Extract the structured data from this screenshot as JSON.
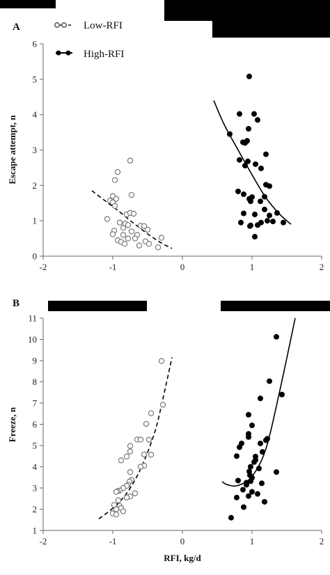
{
  "colors": {
    "low": "#777777",
    "high": "#000000",
    "axis": "#555555",
    "bar": "#000000"
  },
  "legend": {
    "items": [
      {
        "label": "Low-RFI"
      },
      {
        "label": "High-RFI"
      }
    ]
  },
  "chart_data": [
    {
      "panel": "A",
      "type": "scatter",
      "ylabel": "Escape attempt, n",
      "xlabel": "",
      "xlim": [
        -2,
        2
      ],
      "ylim": [
        0,
        6
      ],
      "xticks": [
        "-2",
        "-1",
        "0",
        "1",
        "2"
      ],
      "yticks": [
        "0",
        "1",
        "2",
        "3",
        "4",
        "5",
        "6"
      ],
      "series": [
        {
          "name": "Low-RFI",
          "marker": "open-circle",
          "line": "dashed",
          "points": [
            [
              -0.75,
              2.7
            ],
            [
              -0.93,
              2.38
            ],
            [
              -0.97,
              2.15
            ],
            [
              -0.73,
              1.73
            ],
            [
              -1.0,
              1.7
            ],
            [
              -0.95,
              1.62
            ],
            [
              -1.04,
              1.57
            ],
            [
              -1.0,
              1.52
            ],
            [
              -0.97,
              1.42
            ],
            [
              -0.8,
              1.18
            ],
            [
              -0.75,
              1.22
            ],
            [
              -0.7,
              1.2
            ],
            [
              -1.08,
              1.05
            ],
            [
              -0.9,
              0.95
            ],
            [
              -0.82,
              0.92
            ],
            [
              -0.85,
              0.8
            ],
            [
              -0.78,
              0.88
            ],
            [
              -0.6,
              0.86
            ],
            [
              -0.55,
              0.85
            ],
            [
              -0.5,
              0.75
            ],
            [
              -0.98,
              0.72
            ],
            [
              -0.73,
              0.7
            ],
            [
              -1.0,
              0.62
            ],
            [
              -0.85,
              0.6
            ],
            [
              -0.65,
              0.6
            ],
            [
              -0.3,
              0.52
            ],
            [
              -0.78,
              0.5
            ],
            [
              -0.68,
              0.5
            ],
            [
              -0.93,
              0.45
            ],
            [
              -0.88,
              0.4
            ],
            [
              -0.53,
              0.42
            ],
            [
              -0.48,
              0.35
            ],
            [
              -0.83,
              0.35
            ],
            [
              -0.62,
              0.3
            ],
            [
              -0.35,
              0.25
            ]
          ],
          "fit": [
            [
              -1.3,
              1.85
            ],
            [
              -1.1,
              1.55
            ],
            [
              -0.9,
              1.25
            ],
            [
              -0.7,
              0.93
            ],
            [
              -0.5,
              0.63
            ],
            [
              -0.3,
              0.37
            ],
            [
              -0.15,
              0.22
            ]
          ]
        },
        {
          "name": "High-RFI",
          "marker": "filled-circle",
          "line": "solid",
          "points": [
            [
              0.96,
              5.08
            ],
            [
              1.03,
              4.02
            ],
            [
              0.82,
              4.02
            ],
            [
              1.08,
              3.85
            ],
            [
              0.95,
              3.6
            ],
            [
              0.68,
              3.45
            ],
            [
              0.87,
              3.22
            ],
            [
              0.93,
              3.26
            ],
            [
              0.9,
              3.2
            ],
            [
              1.2,
              2.88
            ],
            [
              0.82,
              2.72
            ],
            [
              0.94,
              2.68
            ],
            [
              1.05,
              2.6
            ],
            [
              0.9,
              2.56
            ],
            [
              1.13,
              2.48
            ],
            [
              1.2,
              2.02
            ],
            [
              1.25,
              1.98
            ],
            [
              0.8,
              1.83
            ],
            [
              0.88,
              1.75
            ],
            [
              1.0,
              1.67
            ],
            [
              0.96,
              1.62
            ],
            [
              1.12,
              1.55
            ],
            [
              0.98,
              1.55
            ],
            [
              1.18,
              1.68
            ],
            [
              1.18,
              1.32
            ],
            [
              1.36,
              1.22
            ],
            [
              0.88,
              1.21
            ],
            [
              1.04,
              1.18
            ],
            [
              1.25,
              1.15
            ],
            [
              1.22,
              1.0
            ],
            [
              1.3,
              0.98
            ],
            [
              1.13,
              0.95
            ],
            [
              1.08,
              0.88
            ],
            [
              0.98,
              0.87
            ],
            [
              1.45,
              0.95
            ],
            [
              0.84,
              0.95
            ],
            [
              0.97,
              0.85
            ],
            [
              1.04,
              0.55
            ]
          ],
          "fit": [
            [
              0.45,
              4.4
            ],
            [
              0.6,
              3.72
            ],
            [
              0.8,
              3.0
            ],
            [
              1.0,
              2.3
            ],
            [
              1.2,
              1.65
            ],
            [
              1.4,
              1.18
            ],
            [
              1.56,
              0.9
            ]
          ]
        }
      ]
    },
    {
      "panel": "B",
      "type": "scatter",
      "ylabel": "Freeze, n",
      "xlabel": "RFI, kg/d",
      "xlim": [
        -2,
        2
      ],
      "ylim": [
        1,
        11
      ],
      "xticks": [
        "-2",
        "-1",
        "0",
        "1",
        "2"
      ],
      "yticks": [
        "1",
        "2",
        "3",
        "4",
        "5",
        "6",
        "7",
        "8",
        "9",
        "10",
        "11"
      ],
      "series": [
        {
          "name": "Low-RFI",
          "marker": "open-circle",
          "line": "dashed",
          "points": [
            [
              -0.3,
              8.98
            ],
            [
              -0.28,
              6.92
            ],
            [
              -0.45,
              6.52
            ],
            [
              -0.52,
              6.02
            ],
            [
              -0.65,
              5.28
            ],
            [
              -0.6,
              5.28
            ],
            [
              -0.48,
              5.27
            ],
            [
              -0.75,
              4.98
            ],
            [
              -0.75,
              4.72
            ],
            [
              -0.55,
              4.58
            ],
            [
              -0.45,
              4.57
            ],
            [
              -0.8,
              4.48
            ],
            [
              -0.88,
              4.3
            ],
            [
              -0.55,
              4.05
            ],
            [
              -0.6,
              4.0
            ],
            [
              -0.75,
              3.75
            ],
            [
              -0.73,
              3.38
            ],
            [
              -0.76,
              3.3
            ],
            [
              -0.78,
              3.15
            ],
            [
              -0.8,
              3.1
            ],
            [
              -0.85,
              3.0
            ],
            [
              -0.9,
              2.88
            ],
            [
              -0.93,
              2.85
            ],
            [
              -0.95,
              2.82
            ],
            [
              -0.68,
              2.75
            ],
            [
              -0.75,
              2.6
            ],
            [
              -0.8,
              2.55
            ],
            [
              -0.92,
              2.42
            ],
            [
              -0.98,
              2.2
            ],
            [
              -0.9,
              2.15
            ],
            [
              -0.88,
              2.05
            ],
            [
              -0.95,
              2.0
            ],
            [
              -0.85,
              1.9
            ],
            [
              -1.0,
              1.8
            ],
            [
              -0.95,
              1.75
            ]
          ],
          "fit": [
            [
              -1.2,
              1.55
            ],
            [
              -1.0,
              2.05
            ],
            [
              -0.8,
              2.75
            ],
            [
              -0.6,
              3.9
            ],
            [
              -0.4,
              5.6
            ],
            [
              -0.28,
              7.2
            ],
            [
              -0.15,
              9.15
            ]
          ]
        },
        {
          "name": "High-RFI",
          "marker": "filled-circle",
          "line": "solid",
          "points": [
            [
              1.35,
              10.12
            ],
            [
              1.25,
              8.03
            ],
            [
              1.43,
              7.4
            ],
            [
              1.12,
              7.22
            ],
            [
              0.95,
              6.45
            ],
            [
              1.0,
              5.95
            ],
            [
              0.95,
              5.55
            ],
            [
              0.95,
              5.4
            ],
            [
              1.22,
              5.32
            ],
            [
              1.2,
              5.25
            ],
            [
              0.85,
              5.1
            ],
            [
              1.12,
              5.1
            ],
            [
              0.82,
              4.92
            ],
            [
              1.15,
              4.7
            ],
            [
              1.05,
              4.48
            ],
            [
              0.78,
              4.5
            ],
            [
              1.05,
              4.32
            ],
            [
              1.03,
              4.22
            ],
            [
              0.98,
              4.0
            ],
            [
              1.1,
              3.92
            ],
            [
              0.96,
              3.78
            ],
            [
              1.35,
              3.75
            ],
            [
              0.97,
              3.6
            ],
            [
              1.0,
              3.48
            ],
            [
              0.8,
              3.35
            ],
            [
              0.98,
              3.32
            ],
            [
              0.92,
              3.25
            ],
            [
              1.14,
              3.22
            ],
            [
              0.92,
              3.15
            ],
            [
              0.87,
              2.92
            ],
            [
              1.0,
              2.82
            ],
            [
              1.08,
              2.72
            ],
            [
              0.95,
              2.62
            ],
            [
              0.78,
              2.55
            ],
            [
              1.18,
              2.35
            ],
            [
              0.88,
              2.1
            ],
            [
              0.7,
              1.6
            ]
          ],
          "fit": [
            [
              0.57,
              3.3
            ],
            [
              0.65,
              3.15
            ],
            [
              0.8,
              3.12
            ],
            [
              1.0,
              3.55
            ],
            [
              1.2,
              4.85
            ],
            [
              1.4,
              7.6
            ],
            [
              1.62,
              11.0
            ]
          ]
        }
      ]
    }
  ],
  "panel_labels": [
    "A",
    "B"
  ]
}
